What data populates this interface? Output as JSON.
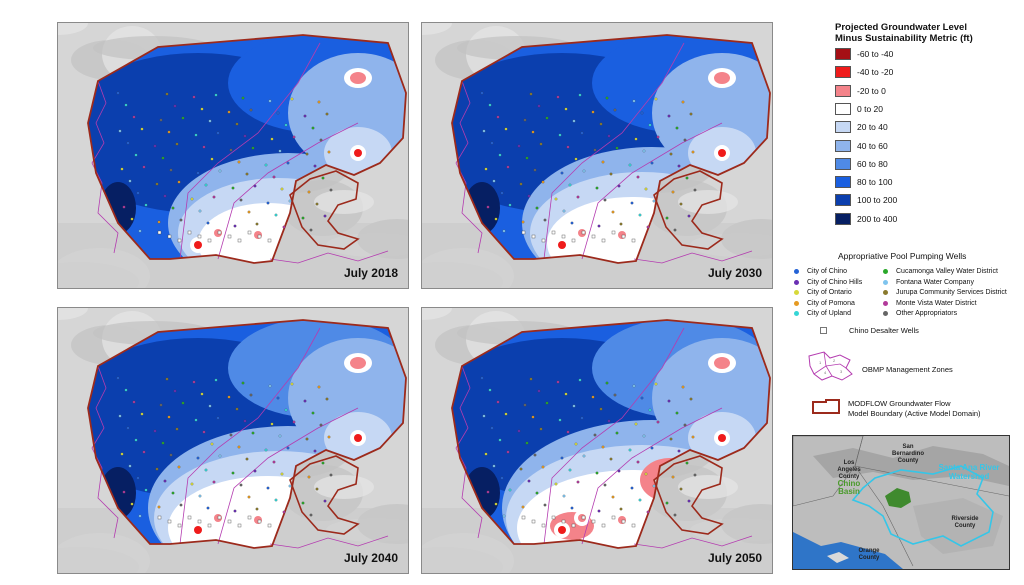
{
  "panels": [
    {
      "label": "July 2018",
      "variant": 0
    },
    {
      "label": "July 2030",
      "variant": 1
    },
    {
      "label": "July 2040",
      "variant": 2
    },
    {
      "label": "July 2050",
      "variant": 3
    }
  ],
  "legend": {
    "title_line1": "Projected Groundwater Level",
    "title_line2": "Minus Sustainability Metric (ft)",
    "classes": [
      {
        "label": "-60 to -40",
        "color": "#a50f15"
      },
      {
        "label": "-40 to -20",
        "color": "#ef1b1b"
      },
      {
        "label": "-20 to 0",
        "color": "#f4838a"
      },
      {
        "label": "0 to 20",
        "color": "#ffffff"
      },
      {
        "label": "20 to 40",
        "color": "#c6d8f4"
      },
      {
        "label": "40 to 60",
        "color": "#8fb4ec"
      },
      {
        "label": "60 to 80",
        "color": "#4f8ae6"
      },
      {
        "label": "80 to 100",
        "color": "#1a5fe0"
      },
      {
        "label": "100 to 200",
        "color": "#0b3fae"
      },
      {
        "label": "200 to 400",
        "color": "#061f63"
      }
    ]
  },
  "wells": {
    "title": "Appropriative Pool Pumping Wells",
    "items": [
      {
        "label": "City of Chino",
        "color": "#2463d6"
      },
      {
        "label": "City of Chino Hills",
        "color": "#6a2fb3"
      },
      {
        "label": "City of Ontario",
        "color": "#d7d93a"
      },
      {
        "label": "City of Pomona",
        "color": "#e59a22"
      },
      {
        "label": "City of Upland",
        "color": "#35d6d6"
      },
      {
        "label": "Cucamonga Valley Water District",
        "color": "#2aa82a"
      },
      {
        "label": "Fontana Water Company",
        "color": "#7fc4ee"
      },
      {
        "label": "Jurupa Community Services District",
        "color": "#8a7a2e"
      },
      {
        "label": "Monte Vista Water District",
        "color": "#b23a9a"
      },
      {
        "label": "Other Appropriators",
        "color": "#666666"
      }
    ]
  },
  "desalter_label": "Chino Desalter Wells",
  "zones_label": "OBMP Management Zones",
  "boundary_label_line1": "MODFLOW Groundwater Flow",
  "boundary_label_line2": "Model Boundary (Active Model Domain)",
  "inset": {
    "san_bernardino": "San Bernardino County",
    "los_angeles": "Los Angeles County",
    "chino_basin": "Chino Basin",
    "watershed": "Santa Ana River Watershed",
    "riverside": "Riverside County",
    "orange": "Orange County",
    "watershed_color": "#35c6e8",
    "basin_color": "#3f8a2e"
  },
  "colors": {
    "boundary": "#9c2a1c",
    "zones": "#b43cb0"
  }
}
